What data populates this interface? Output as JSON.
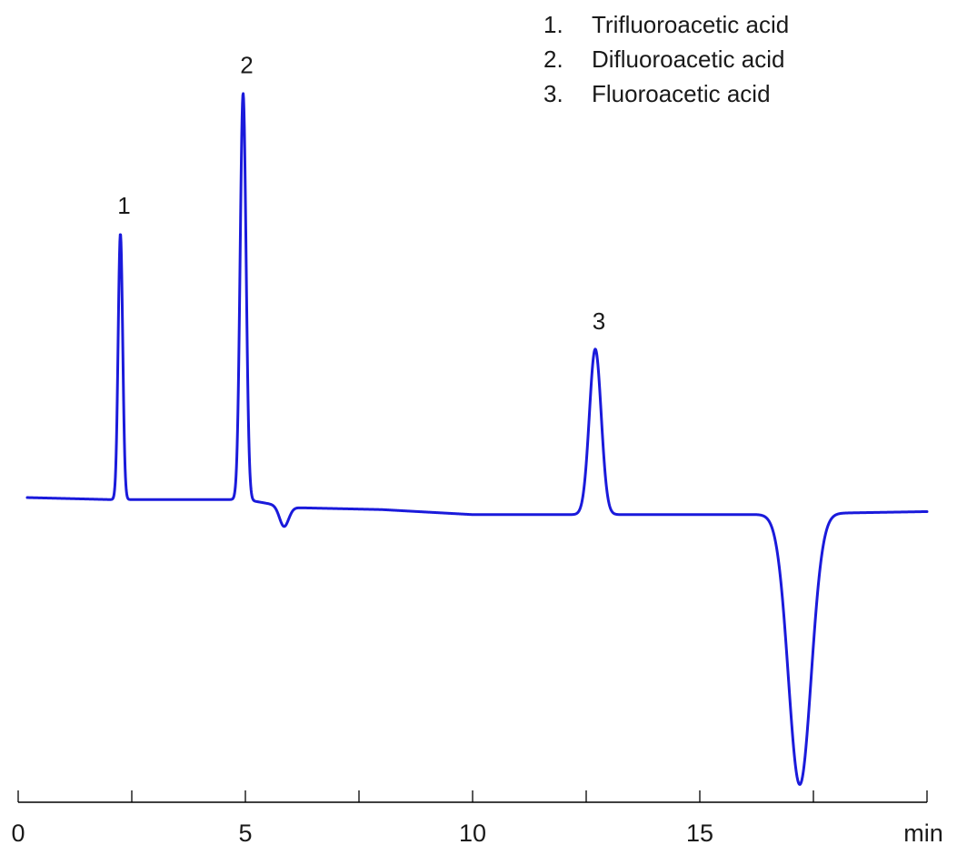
{
  "chart_data": {
    "type": "line",
    "title": "",
    "xlabel": "",
    "ylabel": "",
    "x_unit": "min",
    "xlim": [
      0,
      20
    ],
    "ylim": [
      -30,
      48
    ],
    "x_ticks": [
      0,
      2.5,
      5,
      7.5,
      10,
      12.5,
      15,
      17.5,
      20
    ],
    "x_tick_labels": [
      {
        "value": 0,
        "label": "0"
      },
      {
        "value": 5,
        "label": "5"
      },
      {
        "value": 10,
        "label": "10"
      },
      {
        "value": 15,
        "label": "15"
      },
      {
        "value": 20,
        "label": "min"
      }
    ],
    "grid": false,
    "legend": {
      "placement": "top-right",
      "entries": [
        {
          "number": "1.",
          "name": "Trifluoroacetic acid"
        },
        {
          "number": "2.",
          "name": "Difluoroacetic acid"
        },
        {
          "number": "3.",
          "name": "Fluoroacetic acid"
        }
      ]
    },
    "series": [
      {
        "color": "#1a1adb",
        "baseline": [
          [
            0.2,
            0.2
          ],
          [
            2.0,
            0.0
          ],
          [
            5.0,
            0.0
          ],
          [
            6.0,
            -0.8
          ],
          [
            8.0,
            -1.0
          ],
          [
            10.0,
            -1.5
          ],
          [
            12.0,
            -1.5
          ],
          [
            13.5,
            -1.5
          ],
          [
            16.0,
            -1.5
          ],
          [
            20.0,
            -1.2
          ]
        ],
        "peaks": [
          {
            "label": "1",
            "rt": 2.25,
            "height": 26.5,
            "width": 0.05
          },
          {
            "label": "2",
            "rt": 4.95,
            "height": 40.5,
            "width": 0.065
          },
          {
            "label": "3",
            "rt": 12.7,
            "height": 16.5,
            "width": 0.13
          },
          {
            "label": "",
            "rt": 5.85,
            "height": -2.0,
            "width": 0.1
          },
          {
            "label": "",
            "rt": 17.2,
            "height": -27.0,
            "width": 0.25
          }
        ]
      }
    ]
  }
}
